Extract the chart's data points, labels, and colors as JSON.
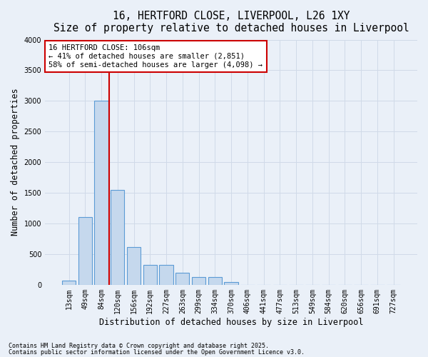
{
  "title_line1": "16, HERTFORD CLOSE, LIVERPOOL, L26 1XY",
  "title_line2": "Size of property relative to detached houses in Liverpool",
  "xlabel": "Distribution of detached houses by size in Liverpool",
  "ylabel": "Number of detached properties",
  "categories": [
    "13sqm",
    "49sqm",
    "84sqm",
    "120sqm",
    "156sqm",
    "192sqm",
    "227sqm",
    "263sqm",
    "299sqm",
    "334sqm",
    "370sqm",
    "406sqm",
    "441sqm",
    "477sqm",
    "513sqm",
    "549sqm",
    "584sqm",
    "620sqm",
    "656sqm",
    "691sqm",
    "727sqm"
  ],
  "values": [
    70,
    1100,
    3000,
    1550,
    620,
    330,
    330,
    200,
    130,
    130,
    50,
    0,
    0,
    0,
    0,
    0,
    0,
    0,
    0,
    0,
    0
  ],
  "bar_color": "#c5d8ed",
  "bar_edge_color": "#5b9bd5",
  "vline_color": "#cc0000",
  "annotation_text": "16 HERTFORD CLOSE: 106sqm\n← 41% of detached houses are smaller (2,851)\n58% of semi-detached houses are larger (4,098) →",
  "annotation_box_color": "#ffffff",
  "annotation_box_edge": "#cc0000",
  "ylim": [
    0,
    4000
  ],
  "yticks": [
    0,
    500,
    1000,
    1500,
    2000,
    2500,
    3000,
    3500,
    4000
  ],
  "footnote1": "Contains HM Land Registry data © Crown copyright and database right 2025.",
  "footnote2": "Contains public sector information licensed under the Open Government Licence v3.0.",
  "bg_color": "#eaf0f8",
  "grid_color": "#d0dae8",
  "title_fontsize": 10.5,
  "subtitle_fontsize": 9.5,
  "tick_fontsize": 7,
  "label_fontsize": 8.5
}
